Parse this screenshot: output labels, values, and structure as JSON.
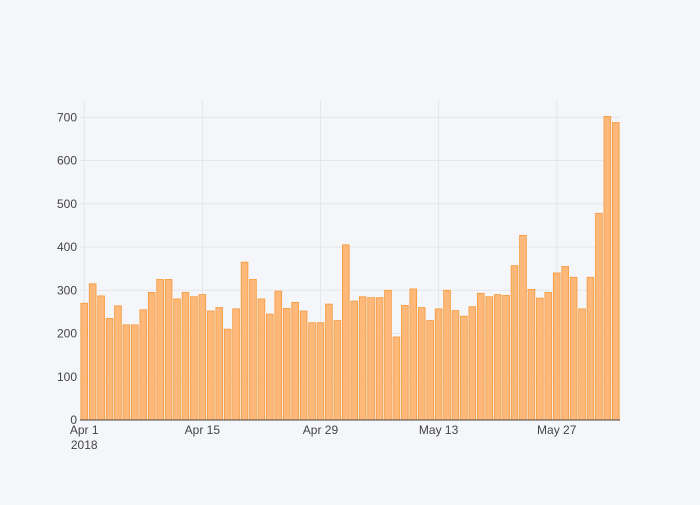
{
  "chart_data": {
    "type": "bar",
    "title": "",
    "xlabel": "",
    "ylabel": "",
    "x_start": "2018-04-01",
    "x_end": "2018-06-03",
    "ylim": [
      0,
      740
    ],
    "yticks": [
      0,
      100,
      200,
      300,
      400,
      500,
      600,
      700
    ],
    "xticks": [
      {
        "date": "2018-04-01",
        "label": "Apr 1",
        "sublabel": "2018"
      },
      {
        "date": "2018-04-15",
        "label": "Apr 15",
        "sublabel": ""
      },
      {
        "date": "2018-04-29",
        "label": "Apr 29",
        "sublabel": ""
      },
      {
        "date": "2018-05-13",
        "label": "May 13",
        "sublabel": ""
      },
      {
        "date": "2018-05-27",
        "label": "May 27",
        "sublabel": ""
      }
    ],
    "grid": true,
    "legend": "none",
    "bar_color": "#fdb87a",
    "bar_outline": "#f59a3a",
    "series": [
      {
        "x": [
          "2018-04-01",
          "2018-04-02",
          "2018-04-03",
          "2018-04-04",
          "2018-04-05",
          "2018-04-06",
          "2018-04-07",
          "2018-04-08",
          "2018-04-09",
          "2018-04-10",
          "2018-04-11",
          "2018-04-12",
          "2018-04-13",
          "2018-04-14",
          "2018-04-15",
          "2018-04-16",
          "2018-04-17",
          "2018-04-18",
          "2018-04-19",
          "2018-04-20",
          "2018-04-21",
          "2018-04-22",
          "2018-04-23",
          "2018-04-24",
          "2018-04-25",
          "2018-04-26",
          "2018-04-27",
          "2018-04-28",
          "2018-04-29",
          "2018-04-30",
          "2018-05-01",
          "2018-05-02",
          "2018-05-03",
          "2018-05-04",
          "2018-05-05",
          "2018-05-06",
          "2018-05-07",
          "2018-05-08",
          "2018-05-09",
          "2018-05-10",
          "2018-05-11",
          "2018-05-12",
          "2018-05-13",
          "2018-05-14",
          "2018-05-15",
          "2018-05-16",
          "2018-05-17",
          "2018-05-18",
          "2018-05-19",
          "2018-05-20",
          "2018-05-21",
          "2018-05-22",
          "2018-05-23",
          "2018-05-24",
          "2018-05-25",
          "2018-05-26",
          "2018-05-27",
          "2018-05-28",
          "2018-05-29",
          "2018-05-30",
          "2018-05-31",
          "2018-06-01",
          "2018-06-02",
          "2018-06-03"
        ],
        "values": [
          270,
          315,
          287,
          235,
          264,
          220,
          220,
          255,
          295,
          325,
          325,
          280,
          295,
          285,
          290,
          252,
          260,
          210,
          257,
          365,
          325,
          280,
          245,
          298,
          258,
          272,
          252,
          225,
          225,
          268,
          230,
          405,
          275,
          285,
          283,
          283,
          300,
          192,
          265,
          303,
          260,
          230,
          257,
          300,
          253,
          240,
          262,
          293,
          285,
          290,
          288,
          357,
          427,
          302,
          282,
          295,
          340,
          355,
          330,
          257,
          330,
          478,
          702,
          688
        ]
      }
    ]
  }
}
